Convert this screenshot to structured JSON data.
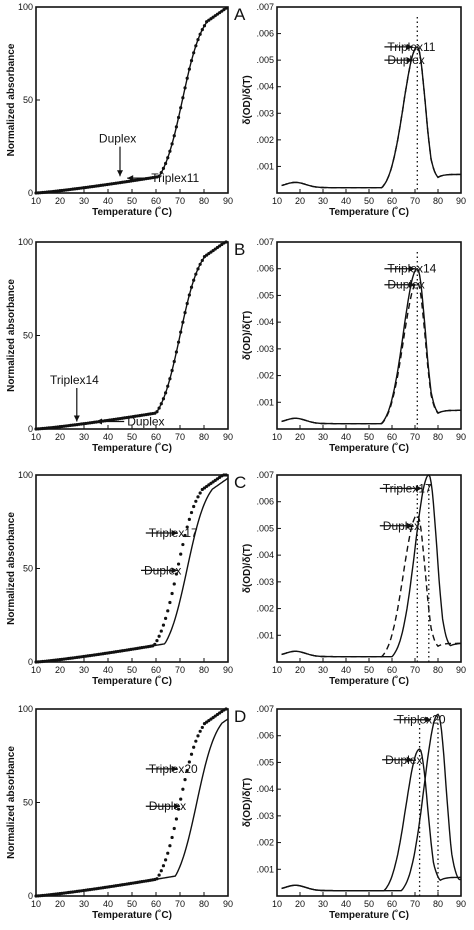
{
  "chart_data": [
    {
      "type": "line",
      "panel": "A",
      "abs": {
        "ylabel": "Normalized absorbance",
        "xlabel": "Temperature (˚C)",
        "xlim": [
          10,
          90
        ],
        "ylim": [
          0,
          100
        ],
        "xticks": [
          "10",
          "20",
          "30",
          "40",
          "50",
          "60",
          "70",
          "80",
          "90"
        ],
        "yticks": [
          "0",
          "50",
          "100"
        ],
        "series": [
          {
            "name": "Triplex11",
            "style": "dotted",
            "tm": 71,
            "onset": 37
          },
          {
            "name": "Duplex",
            "style": "solid",
            "tm": 71,
            "onset": 37
          }
        ],
        "annotations": [
          {
            "text": "Duplex",
            "x": 45,
            "y": 9,
            "label_x": 44,
            "label_y": 26
          },
          {
            "text": "Triplex11",
            "x": 48,
            "y": 8,
            "label_x": 58,
            "label_y": 8
          }
        ]
      },
      "deriv": {
        "ylabel": "δ(OD)/δ(T)",
        "xlabel": "Temperature (˚C)",
        "xlim": [
          10,
          90
        ],
        "ylim": [
          0,
          0.007
        ],
        "xticks": [
          "10",
          "20",
          "30",
          "40",
          "50",
          "60",
          "70",
          "80",
          "90"
        ],
        "yticks": [
          ".001",
          ".002",
          ".003",
          ".004",
          ".005",
          ".006",
          ".007"
        ],
        "series": [
          {
            "name": "Triplex11",
            "style": "solid",
            "peak_x": 71,
            "peak_y": 0.0055
          },
          {
            "name": "Duplex",
            "style": "dashed",
            "peak_x": 71,
            "peak_y": 0.0055
          }
        ],
        "vlines": [
          71
        ],
        "annotations": [
          {
            "text": "Triplex11",
            "x": 69,
            "y": 0.0055,
            "label_x": 58,
            "label_y": 0.0055
          },
          {
            "text": "Duplex",
            "x": 69,
            "y": 0.005,
            "label_x": 58,
            "label_y": 0.005
          }
        ]
      }
    },
    {
      "type": "line",
      "panel": "B",
      "abs": {
        "ylabel": "Normalized absorbance",
        "xlabel": "Temperature (˚C)",
        "xlim": [
          10,
          90
        ],
        "ylim": [
          0,
          100
        ],
        "xticks": [
          "10",
          "20",
          "30",
          "40",
          "50",
          "60",
          "70",
          "80",
          "90"
        ],
        "yticks": [
          "0",
          "50",
          "100"
        ],
        "series": [
          {
            "name": "Triplex14",
            "style": "dotted",
            "tm": 70,
            "onset": 37
          },
          {
            "name": "Duplex",
            "style": "solid",
            "tm": 70,
            "onset": 37
          }
        ],
        "annotations": [
          {
            "text": "Triplex14",
            "x": 27,
            "y": 4,
            "label_x": 26,
            "label_y": 23
          },
          {
            "text": "Duplex",
            "x": 35,
            "y": 4,
            "label_x": 48,
            "label_y": 4
          }
        ]
      },
      "deriv": {
        "ylabel": "δ(OD)/δ(T)",
        "xlabel": "Temperature (˚C)",
        "xlim": [
          10,
          90
        ],
        "ylim": [
          0,
          0.007
        ],
        "xticks": [
          "10",
          "20",
          "30",
          "40",
          "50",
          "60",
          "70",
          "80",
          "90"
        ],
        "yticks": [
          ".001",
          ".002",
          ".003",
          ".004",
          ".005",
          ".006",
          ".007"
        ],
        "series": [
          {
            "name": "Triplex14",
            "style": "solid",
            "peak_x": 71,
            "peak_y": 0.006
          },
          {
            "name": "Duplex",
            "style": "dashed",
            "peak_x": 71,
            "peak_y": 0.0055
          }
        ],
        "vlines": [
          71
        ],
        "annotations": [
          {
            "text": "Triplex14",
            "x": 70,
            "y": 0.006,
            "label_x": 58,
            "label_y": 0.006
          },
          {
            "text": "Duplex",
            "x": 70,
            "y": 0.0054,
            "label_x": 58,
            "label_y": 0.0054
          }
        ]
      }
    },
    {
      "type": "line",
      "panel": "C",
      "abs": {
        "ylabel": "Normalized absorbance",
        "xlabel": "Temperature (˚C)",
        "xlim": [
          10,
          90
        ],
        "ylim": [
          0,
          100
        ],
        "xticks": [
          "10",
          "20",
          "30",
          "40",
          "50",
          "60",
          "70",
          "80",
          "90"
        ],
        "yticks": [
          "0",
          "50",
          "100"
        ],
        "series": [
          {
            "name": "Triplex17",
            "style": "dotted",
            "tm": 69,
            "onset": 35
          },
          {
            "name": "Duplex",
            "style": "solid",
            "tm": 73,
            "onset": 35
          }
        ],
        "annotations": [
          {
            "text": "Triplex17",
            "x": 69,
            "y": 69,
            "label_x": 57,
            "label_y": 69
          },
          {
            "text": "Duplex",
            "x": 69,
            "y": 49,
            "label_x": 55,
            "label_y": 49
          }
        ]
      },
      "deriv": {
        "ylabel": "δ(OD)/δ(T)",
        "xlabel": "Temperature (˚C)",
        "xlim": [
          10,
          90
        ],
        "ylim": [
          0,
          0.007
        ],
        "xticks": [
          "10",
          "20",
          "30",
          "40",
          "50",
          "60",
          "70",
          "80",
          "90"
        ],
        "yticks": [
          ".001",
          ".002",
          ".003",
          ".004",
          ".005",
          ".006",
          ".007"
        ],
        "series": [
          {
            "name": "Triplex17",
            "style": "solid",
            "peak_x": 76,
            "peak_y": 0.007
          },
          {
            "name": "Duplex",
            "style": "dashed",
            "peak_x": 71,
            "peak_y": 0.0055
          }
        ],
        "vlines": [
          71,
          76
        ],
        "annotations": [
          {
            "text": "Triplex17",
            "x": 73,
            "y": 0.0065,
            "label_x": 56,
            "label_y": 0.0065
          },
          {
            "text": "Duplex",
            "x": 69,
            "y": 0.0051,
            "label_x": 56,
            "label_y": 0.0051
          }
        ]
      }
    },
    {
      "type": "line",
      "panel": "D",
      "abs": {
        "ylabel": "Normalized absorbance",
        "xlabel": "Temperature (˚C)",
        "xlim": [
          10,
          90
        ],
        "ylim": [
          0,
          100
        ],
        "xticks": [
          "10",
          "20",
          "30",
          "40",
          "50",
          "60",
          "70",
          "80",
          "90"
        ],
        "yticks": [
          "0",
          "50",
          "100"
        ],
        "series": [
          {
            "name": "Triplex20",
            "style": "dotted",
            "tm": 70,
            "onset": 35
          },
          {
            "name": "Duplex",
            "style": "solid",
            "tm": 77,
            "onset": 35
          }
        ],
        "annotations": [
          {
            "text": "Triplex20",
            "x": 69,
            "y": 68,
            "label_x": 57,
            "label_y": 68
          },
          {
            "text": "Duplex",
            "x": 70,
            "y": 48,
            "label_x": 57,
            "label_y": 48
          }
        ]
      },
      "deriv": {
        "ylabel": "δ(OD)/δ(T)",
        "xlabel": "Temperature (˚C)",
        "xlim": [
          10,
          90
        ],
        "ylim": [
          0,
          0.007
        ],
        "xticks": [
          "10",
          "20",
          "30",
          "40",
          "50",
          "60",
          "70",
          "80",
          "90"
        ],
        "yticks": [
          ".001",
          ".002",
          ".003",
          ".004",
          ".005",
          ".006",
          ".007"
        ],
        "series": [
          {
            "name": "Triplex20",
            "style": "solid",
            "peak_x": 80,
            "peak_y": 0.0068
          },
          {
            "name": "Duplex",
            "style": "solid",
            "peak_x": 72,
            "peak_y": 0.0055
          }
        ],
        "vlines": [
          72,
          80
        ],
        "annotations": [
          {
            "text": "Triplex20",
            "x": 77,
            "y": 0.0066,
            "label_x": 62,
            "label_y": 0.0066
          },
          {
            "text": "Duplex",
            "x": 69,
            "y": 0.0051,
            "label_x": 57,
            "label_y": 0.0051
          }
        ]
      }
    }
  ]
}
